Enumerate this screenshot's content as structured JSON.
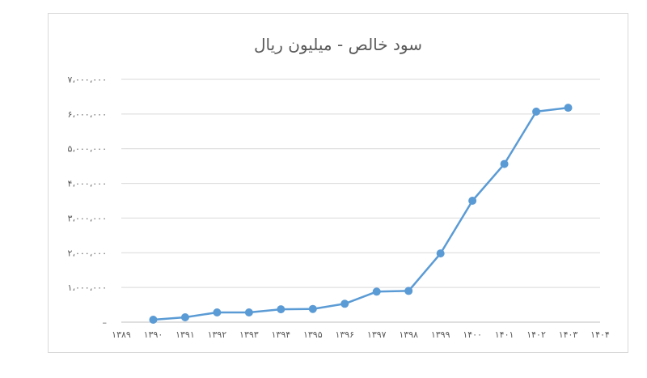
{
  "chart_data": {
    "type": "line",
    "title": "سود خالص - میلیون ریال",
    "x": [
      "۱۳۸۹",
      "۱۳۹۰",
      "۱۳۹۱",
      "۱۳۹۲",
      "۱۳۹۳",
      "۱۳۹۴",
      "۱۳۹۵",
      "۱۳۹۶",
      "۱۳۹۷",
      "۱۳۹۸",
      "۱۳۹۹",
      "۱۴۰۰",
      "۱۴۰۱",
      "۱۴۰۲",
      "۱۴۰۳",
      "۱۴۰۴"
    ],
    "y_tick_labels": [
      "–",
      "۱،۰۰۰،۰۰۰",
      "۲،۰۰۰،۰۰۰",
      "۳،۰۰۰،۰۰۰",
      "۴،۰۰۰،۰۰۰",
      "۵،۰۰۰،۰۰۰",
      "۶،۰۰۰،۰۰۰",
      "۷،۰۰۰،۰۰۰"
    ],
    "ylim": [
      0,
      7000000
    ],
    "series": [
      {
        "values": [
          null,
          70000,
          140000,
          280000,
          280000,
          370000,
          380000,
          530000,
          880000,
          900000,
          1980000,
          3500000,
          4560000,
          6070000,
          6180000,
          null
        ],
        "color": "#5b9bd5"
      }
    ],
    "grid": true,
    "legend": "none"
  }
}
